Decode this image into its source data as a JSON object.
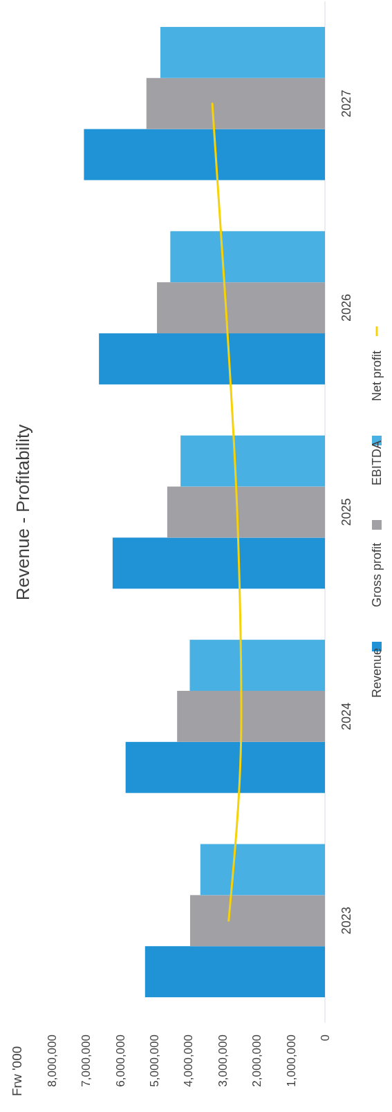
{
  "chart_data": {
    "type": "bar",
    "orientation": "horizontal",
    "title": "Revenue - Profitability",
    "annotations": [
      "Frw '000"
    ],
    "categories": [
      "2027",
      "2026",
      "2025",
      "2024",
      "2023"
    ],
    "series": [
      {
        "name": "Revenue",
        "color": "#1f93d5",
        "values": [
          7060000,
          6620000,
          6220000,
          5840000,
          5270000
        ]
      },
      {
        "name": "Gross profit",
        "color": "#a0a0a5",
        "values": [
          5230000,
          4920000,
          4620000,
          4330000,
          3950000
        ]
      },
      {
        "name": "EBITDA",
        "color": "#48b0e3",
        "values": [
          4820000,
          4530000,
          4230000,
          3960000,
          3650000
        ]
      },
      {
        "name": "Net profit",
        "type": "line",
        "color": "#f5d20a",
        "values": [
          3300000,
          2900000,
          2570000,
          2450000,
          2820000
        ]
      }
    ],
    "xlim": [
      8000000,
      0
    ],
    "xticks": [
      {
        "value": 0,
        "label": "0"
      },
      {
        "value": 1000000,
        "label": "1,000,000"
      },
      {
        "value": 2000000,
        "label": "2,000,000"
      },
      {
        "value": 3000000,
        "label": "3,000,000"
      },
      {
        "value": 4000000,
        "label": "4,000,000"
      },
      {
        "value": 5000000,
        "label": "5,000,000"
      },
      {
        "value": 6000000,
        "label": "6,000,000"
      },
      {
        "value": 7000000,
        "label": "7,000,000"
      },
      {
        "value": 8000000,
        "label": "8,000,000"
      }
    ],
    "legend": "right"
  }
}
